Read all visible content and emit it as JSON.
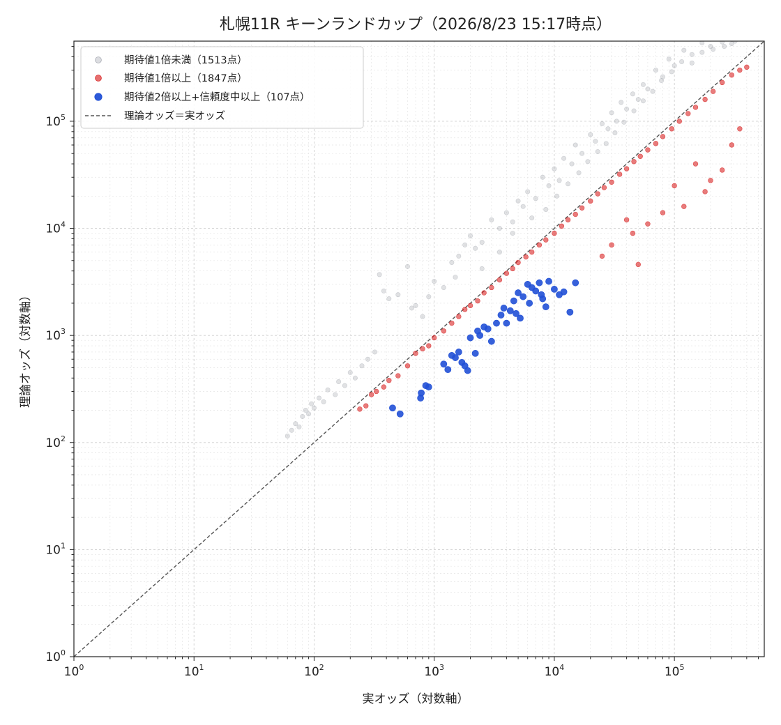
{
  "chart_data": {
    "type": "scatter",
    "title": "札幌11R キーンランドカップ（2026/8/23 15:17時点）",
    "xlabel": "実オッズ（対数軸）",
    "ylabel": "理論オッズ（対数軸）",
    "xscale": "log",
    "yscale": "log",
    "xlim": [
      1,
      560000
    ],
    "ylim": [
      1,
      560000
    ],
    "x_ticks": [
      {
        "value": 1,
        "label": "10",
        "exp": "0"
      },
      {
        "value": 10,
        "label": "10",
        "exp": "1"
      },
      {
        "value": 100,
        "label": "10",
        "exp": "2"
      },
      {
        "value": 1000,
        "label": "10",
        "exp": "3"
      },
      {
        "value": 10000,
        "label": "10",
        "exp": "4"
      },
      {
        "value": 100000,
        "label": "10",
        "exp": "5"
      }
    ],
    "y_ticks": [
      {
        "value": 1,
        "label": "10",
        "exp": "0"
      },
      {
        "value": 10,
        "label": "10",
        "exp": "1"
      },
      {
        "value": 100,
        "label": "10",
        "exp": "2"
      },
      {
        "value": 1000,
        "label": "10",
        "exp": "3"
      },
      {
        "value": 10000,
        "label": "10",
        "exp": "4"
      },
      {
        "value": 100000,
        "label": "10",
        "exp": "5"
      }
    ],
    "grid": true,
    "legend_position": "top-left",
    "reference_line": {
      "name": "理論オッズ＝実オッズ",
      "color": "#555555",
      "style": "dashed"
    },
    "series": [
      {
        "name": "期待値1倍未満（1513点）",
        "color": "#a8abb3",
        "alpha": 0.35,
        "count": 1513,
        "points": [
          [
            60,
            115
          ],
          [
            65,
            130
          ],
          [
            70,
            150
          ],
          [
            75,
            140
          ],
          [
            80,
            175
          ],
          [
            85,
            200
          ],
          [
            90,
            185
          ],
          [
            95,
            230
          ],
          [
            100,
            210
          ],
          [
            110,
            260
          ],
          [
            120,
            240
          ],
          [
            130,
            310
          ],
          [
            150,
            280
          ],
          [
            160,
            370
          ],
          [
            180,
            340
          ],
          [
            200,
            450
          ],
          [
            220,
            400
          ],
          [
            250,
            520
          ],
          [
            280,
            600
          ],
          [
            320,
            700
          ],
          [
            350,
            3700
          ],
          [
            380,
            2600
          ],
          [
            420,
            2200
          ],
          [
            500,
            2400
          ],
          [
            600,
            4400
          ],
          [
            650,
            1800
          ],
          [
            700,
            1900
          ],
          [
            800,
            1500
          ],
          [
            900,
            2300
          ],
          [
            1000,
            3200
          ],
          [
            1200,
            2800
          ],
          [
            1400,
            4800
          ],
          [
            1600,
            5500
          ],
          [
            1800,
            7000
          ],
          [
            2000,
            8500
          ],
          [
            2200,
            6500
          ],
          [
            2500,
            7400
          ],
          [
            3000,
            12000
          ],
          [
            3500,
            10000
          ],
          [
            4000,
            14000
          ],
          [
            4500,
            11500
          ],
          [
            5000,
            18000
          ],
          [
            5500,
            16000
          ],
          [
            6000,
            22000
          ],
          [
            7000,
            19000
          ],
          [
            8000,
            30000
          ],
          [
            9000,
            25000
          ],
          [
            10000,
            36000
          ],
          [
            11000,
            28000
          ],
          [
            12000,
            45000
          ],
          [
            14000,
            40000
          ],
          [
            15000,
            60000
          ],
          [
            17000,
            50000
          ],
          [
            20000,
            75000
          ],
          [
            22000,
            65000
          ],
          [
            25000,
            95000
          ],
          [
            28000,
            85000
          ],
          [
            30000,
            120000
          ],
          [
            33000,
            100000
          ],
          [
            36000,
            150000
          ],
          [
            40000,
            130000
          ],
          [
            45000,
            180000
          ],
          [
            50000,
            160000
          ],
          [
            55000,
            220000
          ],
          [
            60000,
            200000
          ],
          [
            70000,
            300000
          ],
          [
            80000,
            260000
          ],
          [
            90000,
            380000
          ],
          [
            100000,
            330000
          ],
          [
            120000,
            460000
          ],
          [
            140000,
            420000
          ],
          [
            170000,
            540000
          ],
          [
            200000,
            500000
          ],
          [
            250000,
            550000
          ],
          [
            300000,
            530000
          ],
          [
            1500,
            3500
          ],
          [
            2500,
            4200
          ],
          [
            3500,
            6000
          ],
          [
            4500,
            9000
          ],
          [
            6500,
            12500
          ],
          [
            8500,
            15000
          ],
          [
            10500,
            20000
          ],
          [
            13000,
            26000
          ],
          [
            16000,
            33000
          ],
          [
            19000,
            42000
          ],
          [
            23000,
            52000
          ],
          [
            27000,
            62000
          ],
          [
            32000,
            78000
          ],
          [
            38000,
            98000
          ],
          [
            46000,
            125000
          ],
          [
            55000,
            155000
          ],
          [
            66000,
            190000
          ],
          [
            78000,
            240000
          ],
          [
            95000,
            290000
          ],
          [
            115000,
            360000
          ],
          [
            140000,
            350000
          ],
          [
            170000,
            440000
          ],
          [
            210000,
            470000
          ],
          [
            260000,
            500000
          ],
          [
            320000,
            560000
          ]
        ]
      },
      {
        "name": "期待値1倍以上（1847点）",
        "color": "#d92424",
        "alpha": 0.6,
        "count": 1847,
        "points": [
          [
            240,
            205
          ],
          [
            270,
            220
          ],
          [
            300,
            280
          ],
          [
            330,
            300
          ],
          [
            380,
            330
          ],
          [
            420,
            380
          ],
          [
            500,
            420
          ],
          [
            600,
            520
          ],
          [
            700,
            680
          ],
          [
            800,
            750
          ],
          [
            900,
            800
          ],
          [
            1000,
            950
          ],
          [
            1200,
            1100
          ],
          [
            1400,
            1300
          ],
          [
            1600,
            1500
          ],
          [
            1800,
            1750
          ],
          [
            2000,
            1900
          ],
          [
            2300,
            2100
          ],
          [
            2600,
            2500
          ],
          [
            3000,
            2800
          ],
          [
            3500,
            3300
          ],
          [
            4000,
            3800
          ],
          [
            4500,
            4200
          ],
          [
            5000,
            4800
          ],
          [
            5800,
            5400
          ],
          [
            6500,
            6000
          ],
          [
            7500,
            7000
          ],
          [
            8500,
            7800
          ],
          [
            10000,
            9000
          ],
          [
            11500,
            10500
          ],
          [
            13000,
            12000
          ],
          [
            15000,
            13500
          ],
          [
            17000,
            15500
          ],
          [
            20000,
            18000
          ],
          [
            23000,
            21000
          ],
          [
            26000,
            24000
          ],
          [
            30000,
            27000
          ],
          [
            35000,
            32000
          ],
          [
            40000,
            36000
          ],
          [
            46000,
            42000
          ],
          [
            52000,
            47000
          ],
          [
            60000,
            54000
          ],
          [
            70000,
            62000
          ],
          [
            80000,
            72000
          ],
          [
            95000,
            85000
          ],
          [
            110000,
            100000
          ],
          [
            130000,
            118000
          ],
          [
            150000,
            135000
          ],
          [
            180000,
            160000
          ],
          [
            210000,
            190000
          ],
          [
            250000,
            230000
          ],
          [
            300000,
            270000
          ],
          [
            350000,
            300000
          ],
          [
            400000,
            320000
          ],
          [
            50000,
            4600
          ],
          [
            80000,
            14000
          ],
          [
            100000,
            25000
          ],
          [
            120000,
            16000
          ],
          [
            150000,
            40000
          ],
          [
            180000,
            22000
          ],
          [
            200000,
            28000
          ],
          [
            250000,
            35000
          ],
          [
            300000,
            60000
          ],
          [
            350000,
            85000
          ],
          [
            45000,
            9000
          ],
          [
            60000,
            11000
          ],
          [
            40000,
            12000
          ],
          [
            30000,
            7000
          ],
          [
            25000,
            5500
          ]
        ]
      },
      {
        "name": "期待値2倍以上+信頼度中以上（107点）",
        "color": "#2150d6",
        "alpha": 0.9,
        "count": 107,
        "points": [
          [
            450,
            210
          ],
          [
            520,
            185
          ],
          [
            770,
            260
          ],
          [
            780,
            290
          ],
          [
            850,
            340
          ],
          [
            900,
            330
          ],
          [
            1200,
            540
          ],
          [
            1300,
            480
          ],
          [
            1400,
            650
          ],
          [
            1500,
            620
          ],
          [
            1600,
            700
          ],
          [
            1700,
            560
          ],
          [
            1800,
            520
          ],
          [
            1900,
            470
          ],
          [
            2000,
            950
          ],
          [
            2200,
            680
          ],
          [
            2300,
            1100
          ],
          [
            2400,
            1000
          ],
          [
            2600,
            1200
          ],
          [
            2800,
            1150
          ],
          [
            3000,
            880
          ],
          [
            3300,
            1300
          ],
          [
            3600,
            1550
          ],
          [
            4000,
            1300
          ],
          [
            4300,
            1700
          ],
          [
            4600,
            2100
          ],
          [
            5000,
            2500
          ],
          [
            5500,
            2300
          ],
          [
            6000,
            3000
          ],
          [
            6500,
            2800
          ],
          [
            7000,
            2600
          ],
          [
            7500,
            3100
          ],
          [
            8000,
            2200
          ],
          [
            8500,
            1850
          ],
          [
            9000,
            3200
          ],
          [
            10000,
            2700
          ],
          [
            11000,
            2400
          ],
          [
            12000,
            2550
          ],
          [
            13500,
            1650
          ],
          [
            15000,
            3100
          ],
          [
            4800,
            1600
          ],
          [
            5200,
            1450
          ],
          [
            3800,
            1800
          ],
          [
            6200,
            2000
          ],
          [
            7800,
            2400
          ]
        ]
      }
    ]
  }
}
